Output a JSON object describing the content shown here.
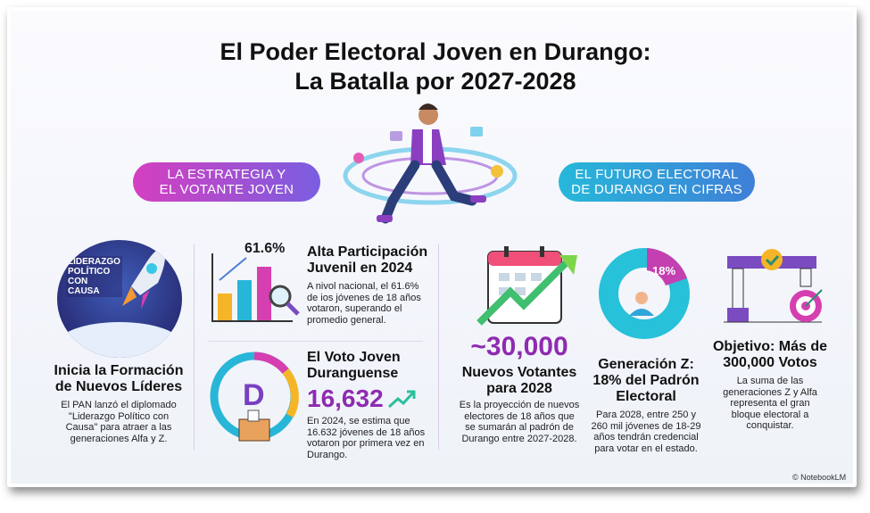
{
  "title": {
    "line1": "El Poder Electoral Joven en Durango:",
    "line2": "La Batalla por 2027-2028"
  },
  "pills": {
    "left": {
      "line1": "LA ESTRATEGIA Y",
      "line2": "EL VOTANTE JOVEN"
    },
    "right": {
      "line1": "EL FUTURO ELECTORAL",
      "line2": "DE DURANGO EN CIFRAS"
    }
  },
  "leaders": {
    "badge": [
      "LIDERAZGO",
      "POLÍTICO",
      "CON",
      "CAUSA"
    ],
    "title": "Inicia la Formación de Nuevos Líderes",
    "body": "El PAN lanzó el diplomado \"Liderazgo Político con Causa\" para atraer a las generaciones Alfa y Z."
  },
  "participation": {
    "value": "61.6%",
    "title": "Alta Participación Juvenil en 2024",
    "body": "A nivol nacional, el 61.6% de ios jóvenes de 18 años votaron, superando el promedio general."
  },
  "durango_vote": {
    "title": "El Voto Joven Duranguense",
    "value": "16,632",
    "body": "En 2024, se estima que 16.632 jóvenes de 18 años votaron por primera vez en Durango."
  },
  "new_voters": {
    "value": "~30,000",
    "title": "Nuevos Votantes para 2028",
    "body": "Es la proyección de nuevos electores de 18 años que se sumarán al padrón de Durango entre 2027-2028."
  },
  "gen_z": {
    "value": "18%",
    "share_percent": 18,
    "title": "Generación Z: 18% del Padrón Electoral",
    "body": "Para 2028, entre 250 y 260 mil jóvenes de 18-29 años tendrán credencial para votar en el estado."
  },
  "goal": {
    "title": "Objetivo: Más de 300,000 Votos",
    "body": "La suma de las generaciones Z y Alfa representa el gran bloque electoral a conquistar."
  },
  "footer": {
    "credit": "© NotebookLM"
  },
  "colors": {
    "purple": "#8e2bb0",
    "magenta": "#d63fb0",
    "cyan": "#27b6d8",
    "blue": "#3a7fd6"
  }
}
